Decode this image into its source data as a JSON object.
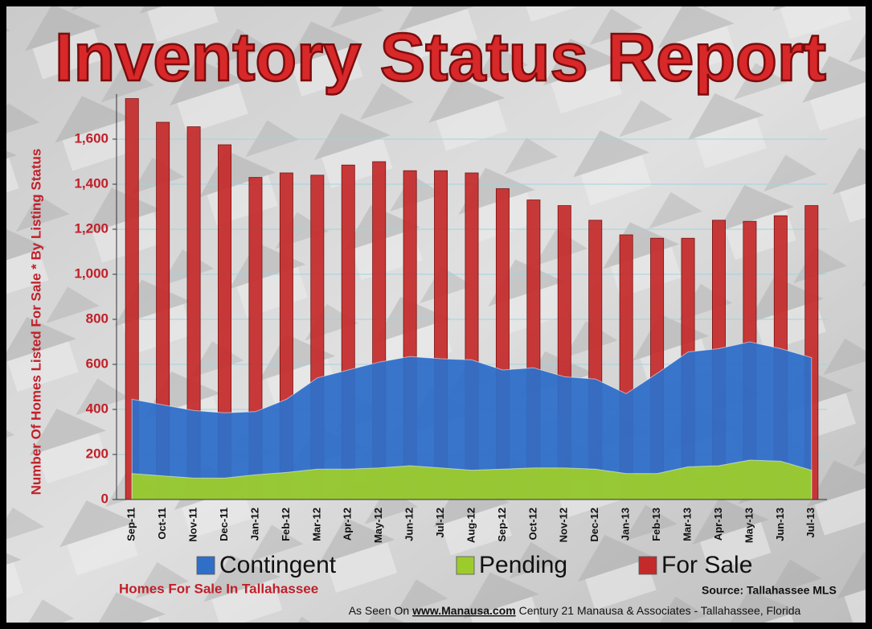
{
  "chart_data": {
    "type": "bar",
    "title": "Inventory Status Report",
    "y_label": "Number Of Homes Listed For Sale * By Listing Status",
    "categories": [
      "Sep-11",
      "Oct-11",
      "Nov-11",
      "Dec-11",
      "Jan-12",
      "Feb-12",
      "Mar-12",
      "Apr-12",
      "May-12",
      "Jun-12",
      "Jul-12",
      "Aug-12",
      "Sep-12",
      "Oct-12",
      "Nov-12",
      "Dec-12",
      "Jan-13",
      "Feb-13",
      "Mar-13",
      "Apr-13",
      "May-13",
      "Jun-13",
      "Jul-13"
    ],
    "series": [
      {
        "name": "Contingent",
        "type": "area",
        "color": "#2f6fc8",
        "values": [
          445,
          420,
          395,
          385,
          390,
          445,
          540,
          575,
          610,
          635,
          625,
          620,
          575,
          585,
          545,
          535,
          470,
          560,
          655,
          670,
          700,
          670,
          630
        ]
      },
      {
        "name": "Pending",
        "type": "area",
        "color": "#9ccc2c",
        "values": [
          115,
          105,
          95,
          95,
          110,
          120,
          135,
          135,
          140,
          150,
          140,
          130,
          135,
          140,
          140,
          135,
          115,
          115,
          145,
          150,
          175,
          170,
          130
        ]
      },
      {
        "name": "For Sale",
        "type": "bar",
        "color": "#c42a2a",
        "values": [
          1780,
          1675,
          1655,
          1575,
          1430,
          1450,
          1440,
          1485,
          1500,
          1460,
          1460,
          1450,
          1380,
          1330,
          1305,
          1240,
          1175,
          1160,
          1160,
          1240,
          1235,
          1260,
          1305
        ]
      }
    ],
    "ylim": [
      0,
      1800
    ],
    "yticks": [
      0,
      200,
      400,
      600,
      800,
      {
        "value": 1000,
        "label": "1,000"
      },
      {
        "value": 1200,
        "label": "1,200"
      },
      {
        "value": 1400,
        "label": "1,400"
      },
      {
        "value": 1600,
        "label": "1,600"
      }
    ],
    "grid": true,
    "legend": "bottom",
    "footer_left": "Homes For Sale In Tallahassee",
    "source": "Source: Tallahassee MLS",
    "credit_prefix": "As Seen On",
    "credit_url": "www.Manausa.com",
    "credit_suffix": "Century 21 Manausa & Associates - Tallahassee, Florida"
  }
}
